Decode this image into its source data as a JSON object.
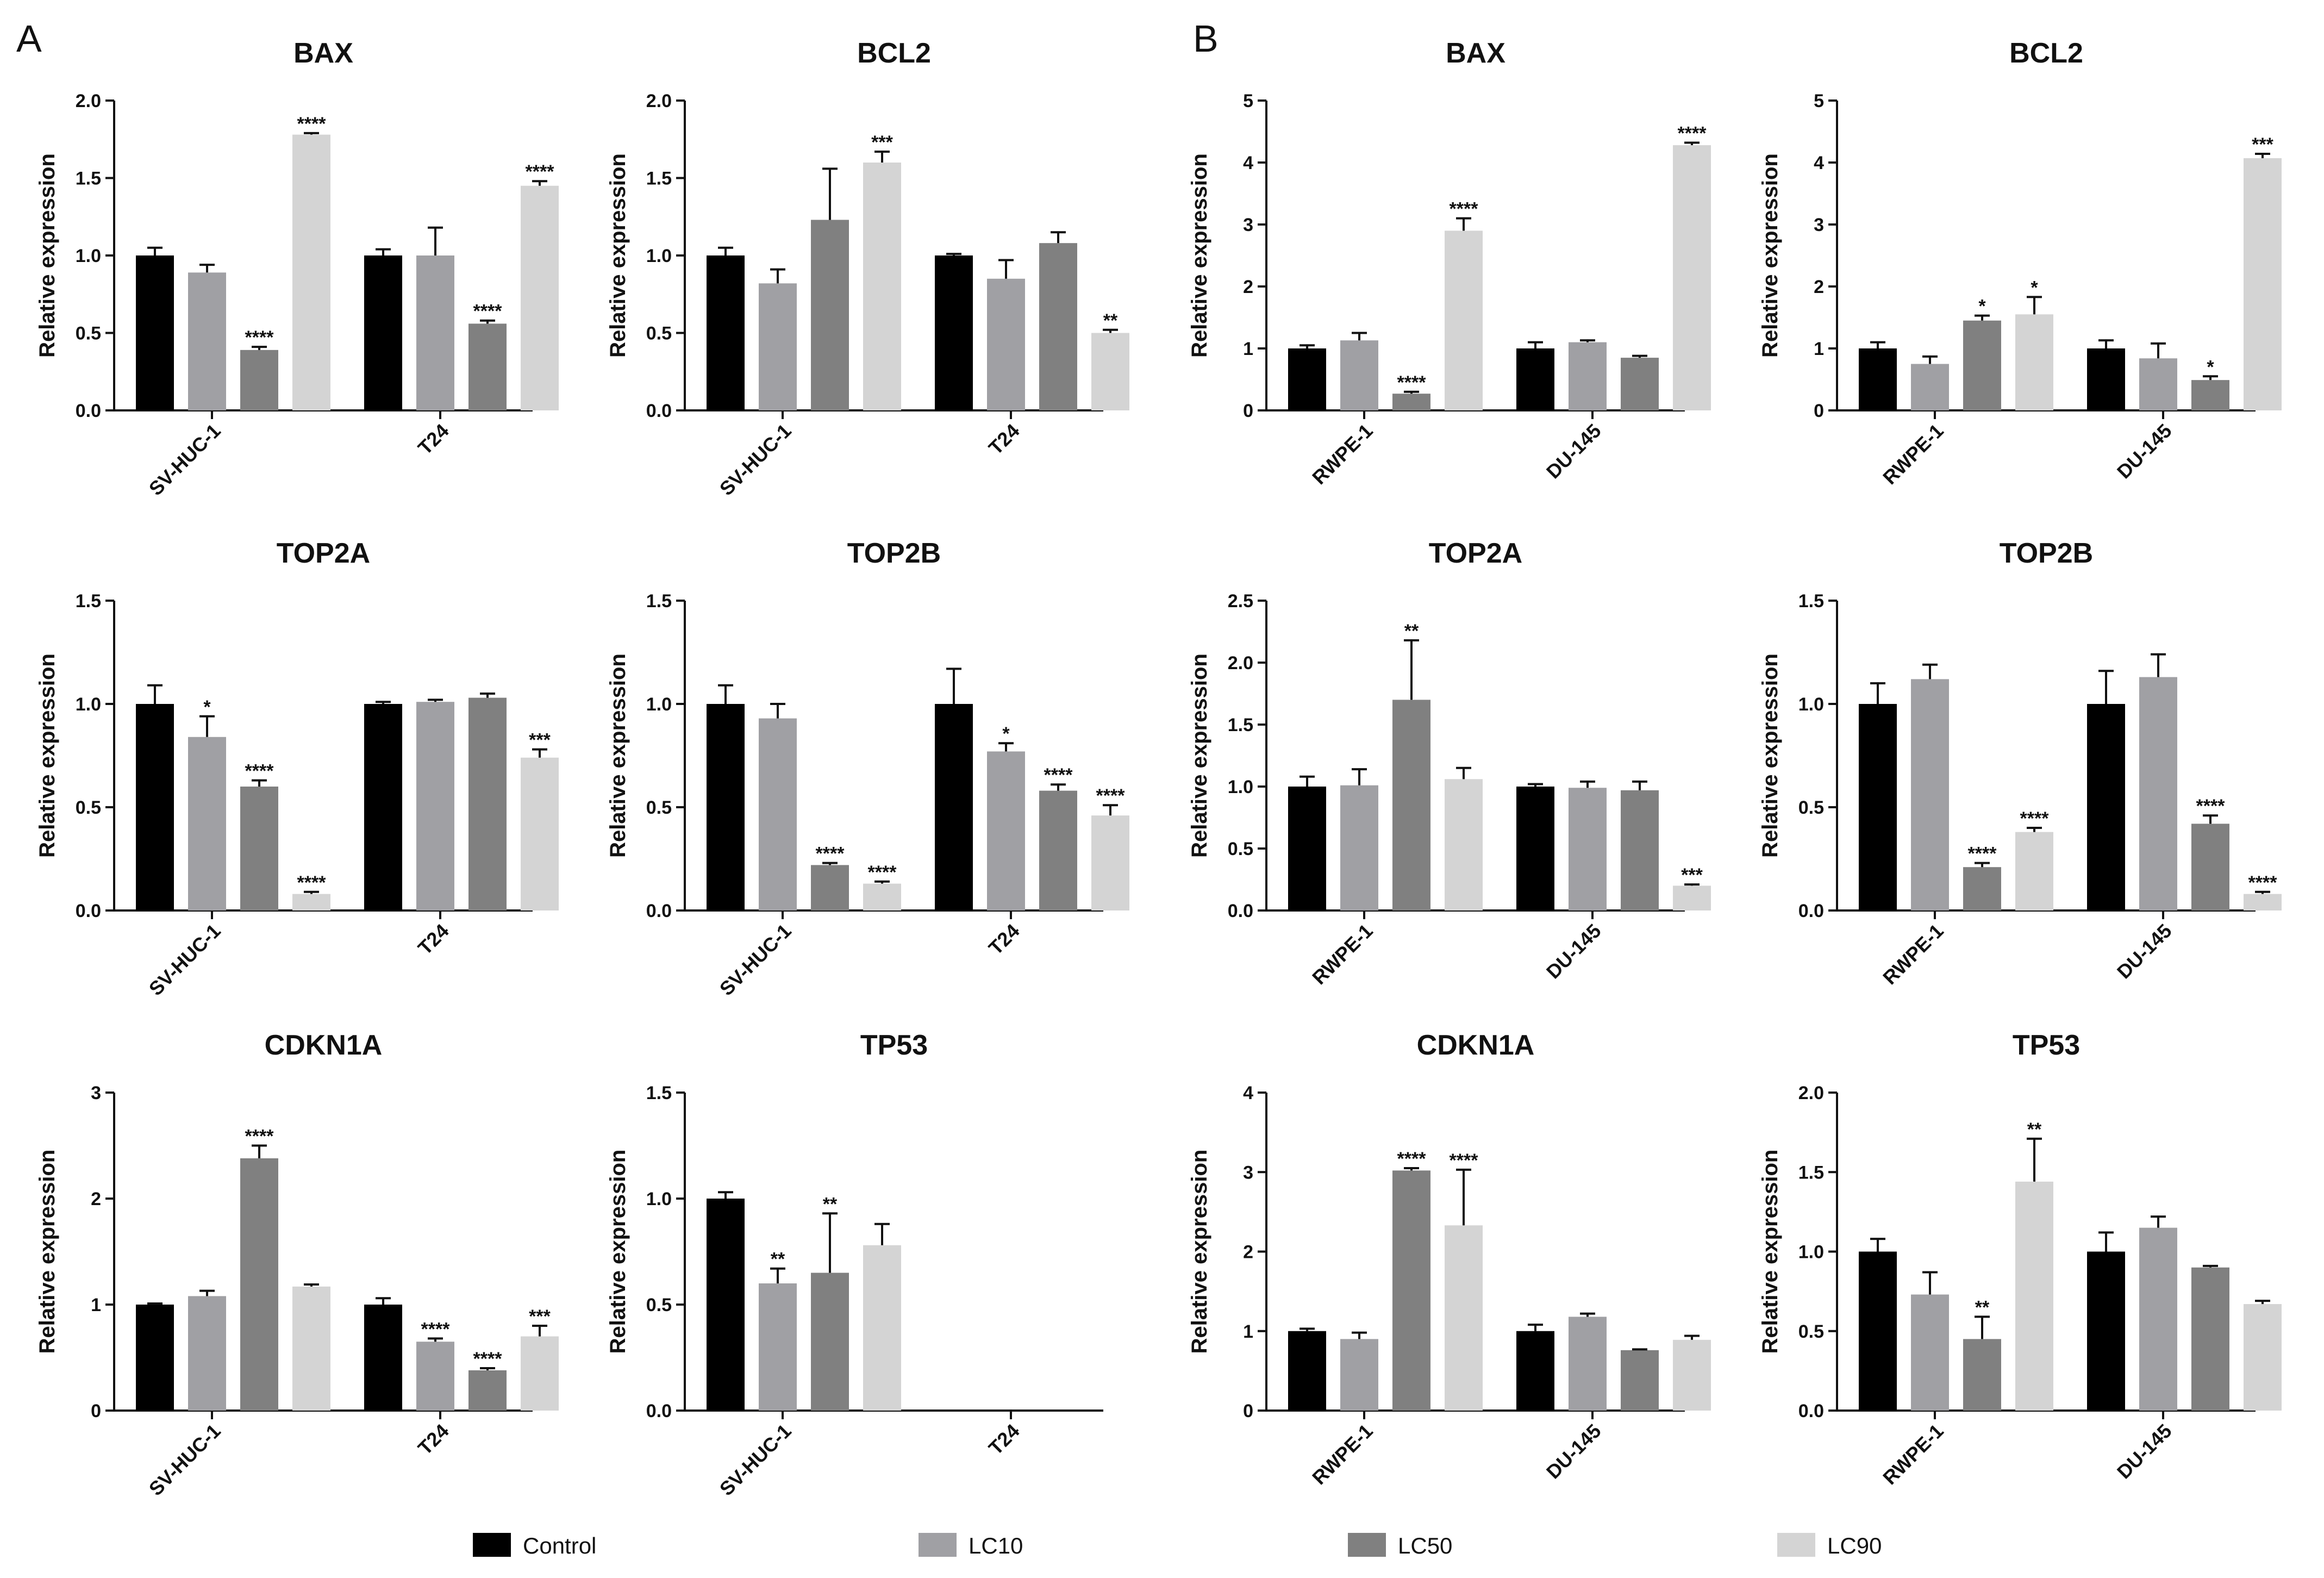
{
  "panel_labels": [
    "A",
    "B"
  ],
  "y_axis_label": "Relative expression",
  "legend": [
    {
      "label": "Control",
      "color": "#000000"
    },
    {
      "label": "LC10",
      "color": "#a0a0a4"
    },
    {
      "label": "LC50",
      "color": "#808080"
    },
    {
      "label": "LC90",
      "color": "#d4d4d4"
    }
  ],
  "chart_data": [
    {
      "type": "bar",
      "panel": "A",
      "title": "BAX",
      "ylabel": "Relative expression",
      "ylim": [
        0,
        2.0
      ],
      "yticks": [
        0.0,
        0.5,
        1.0,
        1.5,
        2.0
      ],
      "ytick_decimals": 1,
      "categories": [
        "SV-HUC-1",
        "T24"
      ],
      "series": [
        {
          "name": "Control",
          "values": [
            1.0,
            1.0
          ],
          "errors": [
            0.05,
            0.04
          ],
          "sig": [
            "",
            ""
          ]
        },
        {
          "name": "LC10",
          "values": [
            0.89,
            1.0
          ],
          "errors": [
            0.05,
            0.18
          ],
          "sig": [
            "",
            ""
          ]
        },
        {
          "name": "LC50",
          "values": [
            0.39,
            0.56
          ],
          "errors": [
            0.02,
            0.02
          ],
          "sig": [
            "****",
            "****"
          ]
        },
        {
          "name": "LC90",
          "values": [
            1.78,
            1.45
          ],
          "errors": [
            0.01,
            0.03
          ],
          "sig": [
            "****",
            "****"
          ]
        }
      ]
    },
    {
      "type": "bar",
      "panel": "A",
      "title": "BCL2",
      "ylabel": "Relative expression",
      "ylim": [
        0,
        2.0
      ],
      "yticks": [
        0.0,
        0.5,
        1.0,
        1.5,
        2.0
      ],
      "ytick_decimals": 1,
      "categories": [
        "SV-HUC-1",
        "T24"
      ],
      "series": [
        {
          "name": "Control",
          "values": [
            1.0,
            1.0
          ],
          "errors": [
            0.05,
            0.01
          ],
          "sig": [
            "",
            ""
          ]
        },
        {
          "name": "LC10",
          "values": [
            0.82,
            0.85
          ],
          "errors": [
            0.09,
            0.12
          ],
          "sig": [
            "",
            ""
          ]
        },
        {
          "name": "LC50",
          "values": [
            1.23,
            1.08
          ],
          "errors": [
            0.33,
            0.07
          ],
          "sig": [
            "",
            ""
          ]
        },
        {
          "name": "LC90",
          "values": [
            1.6,
            0.5
          ],
          "errors": [
            0.07,
            0.02
          ],
          "sig": [
            "***",
            "**"
          ]
        }
      ]
    },
    {
      "type": "bar",
      "panel": "B",
      "title": "BAX",
      "ylabel": "Relative expression",
      "ylim": [
        0,
        5
      ],
      "yticks": [
        0,
        1,
        2,
        3,
        4,
        5
      ],
      "ytick_decimals": 0,
      "categories": [
        "RWPE-1",
        "DU-145"
      ],
      "series": [
        {
          "name": "Control",
          "values": [
            1.0,
            1.0
          ],
          "errors": [
            0.05,
            0.1
          ],
          "sig": [
            "",
            ""
          ]
        },
        {
          "name": "LC10",
          "values": [
            1.13,
            1.1
          ],
          "errors": [
            0.12,
            0.03
          ],
          "sig": [
            "",
            ""
          ]
        },
        {
          "name": "LC50",
          "values": [
            0.27,
            0.85
          ],
          "errors": [
            0.03,
            0.03
          ],
          "sig": [
            "****",
            ""
          ]
        },
        {
          "name": "LC90",
          "values": [
            2.9,
            4.28
          ],
          "errors": [
            0.2,
            0.04
          ],
          "sig": [
            "****",
            "****"
          ]
        }
      ]
    },
    {
      "type": "bar",
      "panel": "B",
      "title": "BCL2",
      "ylabel": "Relative expression",
      "ylim": [
        0,
        5
      ],
      "yticks": [
        0,
        1,
        2,
        3,
        4,
        5
      ],
      "ytick_decimals": 0,
      "categories": [
        "RWPE-1",
        "DU-145"
      ],
      "series": [
        {
          "name": "Control",
          "values": [
            1.0,
            1.0
          ],
          "errors": [
            0.1,
            0.13
          ],
          "sig": [
            "",
            ""
          ]
        },
        {
          "name": "LC10",
          "values": [
            0.75,
            0.84
          ],
          "errors": [
            0.12,
            0.24
          ],
          "sig": [
            "",
            ""
          ]
        },
        {
          "name": "LC50",
          "values": [
            1.45,
            0.49
          ],
          "errors": [
            0.08,
            0.06
          ],
          "sig": [
            "*",
            "*"
          ]
        },
        {
          "name": "LC90",
          "values": [
            1.55,
            4.07
          ],
          "errors": [
            0.28,
            0.07
          ],
          "sig": [
            "*",
            "***"
          ]
        }
      ]
    },
    {
      "type": "bar",
      "panel": "A",
      "title": "TOP2A",
      "ylabel": "Relative expression",
      "ylim": [
        0,
        1.5
      ],
      "yticks": [
        0.0,
        0.5,
        1.0,
        1.5
      ],
      "ytick_decimals": 1,
      "categories": [
        "SV-HUC-1",
        "T24"
      ],
      "series": [
        {
          "name": "Control",
          "values": [
            1.0,
            1.0
          ],
          "errors": [
            0.09,
            0.01
          ],
          "sig": [
            "",
            ""
          ]
        },
        {
          "name": "LC10",
          "values": [
            0.84,
            1.01
          ],
          "errors": [
            0.1,
            0.01
          ],
          "sig": [
            "*",
            ""
          ]
        },
        {
          "name": "LC50",
          "values": [
            0.6,
            1.03
          ],
          "errors": [
            0.03,
            0.02
          ],
          "sig": [
            "****",
            ""
          ]
        },
        {
          "name": "LC90",
          "values": [
            0.08,
            0.74
          ],
          "errors": [
            0.01,
            0.04
          ],
          "sig": [
            "****",
            "***"
          ]
        }
      ]
    },
    {
      "type": "bar",
      "panel": "A",
      "title": "TOP2B",
      "ylabel": "Relative expression",
      "ylim": [
        0,
        1.5
      ],
      "yticks": [
        0.0,
        0.5,
        1.0,
        1.5
      ],
      "ytick_decimals": 1,
      "categories": [
        "SV-HUC-1",
        "T24"
      ],
      "series": [
        {
          "name": "Control",
          "values": [
            1.0,
            1.0
          ],
          "errors": [
            0.09,
            0.17
          ],
          "sig": [
            "",
            ""
          ]
        },
        {
          "name": "LC10",
          "values": [
            0.93,
            0.77
          ],
          "errors": [
            0.07,
            0.04
          ],
          "sig": [
            "",
            "*"
          ]
        },
        {
          "name": "LC50",
          "values": [
            0.22,
            0.58
          ],
          "errors": [
            0.01,
            0.03
          ],
          "sig": [
            "****",
            "****"
          ]
        },
        {
          "name": "LC90",
          "values": [
            0.13,
            0.46
          ],
          "errors": [
            0.01,
            0.05
          ],
          "sig": [
            "****",
            "****"
          ]
        }
      ]
    },
    {
      "type": "bar",
      "panel": "B",
      "title": "TOP2A",
      "ylabel": "Relative expression",
      "ylim": [
        0,
        2.5
      ],
      "yticks": [
        0.0,
        0.5,
        1.0,
        1.5,
        2.0,
        2.5
      ],
      "ytick_decimals": 1,
      "categories": [
        "RWPE-1",
        "DU-145"
      ],
      "series": [
        {
          "name": "Control",
          "values": [
            1.0,
            1.0
          ],
          "errors": [
            0.08,
            0.02
          ],
          "sig": [
            "",
            ""
          ]
        },
        {
          "name": "LC10",
          "values": [
            1.01,
            0.99
          ],
          "errors": [
            0.13,
            0.05
          ],
          "sig": [
            "",
            ""
          ]
        },
        {
          "name": "LC50",
          "values": [
            1.7,
            0.97
          ],
          "errors": [
            0.48,
            0.07
          ],
          "sig": [
            "**",
            ""
          ]
        },
        {
          "name": "LC90",
          "values": [
            1.06,
            0.2
          ],
          "errors": [
            0.09,
            0.01
          ],
          "sig": [
            "",
            "***"
          ]
        }
      ]
    },
    {
      "type": "bar",
      "panel": "B",
      "title": "TOP2B",
      "ylabel": "Relative expression",
      "ylim": [
        0,
        1.5
      ],
      "yticks": [
        0.0,
        0.5,
        1.0,
        1.5
      ],
      "ytick_decimals": 1,
      "categories": [
        "RWPE-1",
        "DU-145"
      ],
      "series": [
        {
          "name": "Control",
          "values": [
            1.0,
            1.0
          ],
          "errors": [
            0.1,
            0.16
          ],
          "sig": [
            "",
            ""
          ]
        },
        {
          "name": "LC10",
          "values": [
            1.12,
            1.13
          ],
          "errors": [
            0.07,
            0.11
          ],
          "sig": [
            "",
            ""
          ]
        },
        {
          "name": "LC50",
          "values": [
            0.21,
            0.42
          ],
          "errors": [
            0.02,
            0.04
          ],
          "sig": [
            "****",
            "****"
          ]
        },
        {
          "name": "LC90",
          "values": [
            0.38,
            0.08
          ],
          "errors": [
            0.02,
            0.01
          ],
          "sig": [
            "****",
            "****"
          ]
        }
      ]
    },
    {
      "type": "bar",
      "panel": "A",
      "title": "CDKN1A",
      "ylabel": "Relative expression",
      "ylim": [
        0,
        3
      ],
      "yticks": [
        0,
        1,
        2,
        3
      ],
      "ytick_decimals": 0,
      "categories": [
        "SV-HUC-1",
        "T24"
      ],
      "series": [
        {
          "name": "Control",
          "values": [
            1.0,
            1.0
          ],
          "errors": [
            0.01,
            0.06
          ],
          "sig": [
            "",
            ""
          ]
        },
        {
          "name": "LC10",
          "values": [
            1.08,
            0.65
          ],
          "errors": [
            0.05,
            0.03
          ],
          "sig": [
            "",
            "****"
          ]
        },
        {
          "name": "LC50",
          "values": [
            2.38,
            0.38
          ],
          "errors": [
            0.12,
            0.02
          ],
          "sig": [
            "****",
            "****"
          ]
        },
        {
          "name": "LC90",
          "values": [
            1.17,
            0.7
          ],
          "errors": [
            0.02,
            0.1
          ],
          "sig": [
            "",
            "***"
          ]
        }
      ]
    },
    {
      "type": "bar",
      "panel": "A",
      "title": "TP53",
      "ylabel": "Relative expression",
      "ylim": [
        0,
        1.5
      ],
      "yticks": [
        0.0,
        0.5,
        1.0,
        1.5
      ],
      "ytick_decimals": 1,
      "categories": [
        "SV-HUC-1",
        "T24"
      ],
      "series": [
        {
          "name": "Control",
          "values": [
            1.0,
            null
          ],
          "errors": [
            0.03,
            0
          ],
          "sig": [
            "",
            ""
          ]
        },
        {
          "name": "LC10",
          "values": [
            0.6,
            null
          ],
          "errors": [
            0.07,
            0
          ],
          "sig": [
            "**",
            ""
          ]
        },
        {
          "name": "LC50",
          "values": [
            0.65,
            null
          ],
          "errors": [
            0.28,
            0
          ],
          "sig": [
            "**",
            ""
          ]
        },
        {
          "name": "LC90",
          "values": [
            0.78,
            null
          ],
          "errors": [
            0.1,
            0
          ],
          "sig": [
            "",
            ""
          ]
        }
      ]
    },
    {
      "type": "bar",
      "panel": "B",
      "title": "CDKN1A",
      "ylabel": "Relative expression",
      "ylim": [
        0,
        4
      ],
      "yticks": [
        0,
        1,
        2,
        3,
        4
      ],
      "ytick_decimals": 0,
      "categories": [
        "RWPE-1",
        "DU-145"
      ],
      "series": [
        {
          "name": "Control",
          "values": [
            1.0,
            1.0
          ],
          "errors": [
            0.03,
            0.08
          ],
          "sig": [
            "",
            ""
          ]
        },
        {
          "name": "LC10",
          "values": [
            0.9,
            1.18
          ],
          "errors": [
            0.08,
            0.04
          ],
          "sig": [
            "",
            ""
          ]
        },
        {
          "name": "LC50",
          "values": [
            3.02,
            0.76
          ],
          "errors": [
            0.03,
            0.01
          ],
          "sig": [
            "****",
            ""
          ]
        },
        {
          "name": "LC90",
          "values": [
            2.33,
            0.89
          ],
          "errors": [
            0.7,
            0.05
          ],
          "sig": [
            "****",
            ""
          ]
        }
      ]
    },
    {
      "type": "bar",
      "panel": "B",
      "title": "TP53",
      "ylabel": "Relative expression",
      "ylim": [
        0,
        2.0
      ],
      "yticks": [
        0.0,
        0.5,
        1.0,
        1.5,
        2.0
      ],
      "ytick_decimals": 1,
      "categories": [
        "RWPE-1",
        "DU-145"
      ],
      "series": [
        {
          "name": "Control",
          "values": [
            1.0,
            1.0
          ],
          "errors": [
            0.08,
            0.12
          ],
          "sig": [
            "",
            ""
          ]
        },
        {
          "name": "LC10",
          "values": [
            0.73,
            1.15
          ],
          "errors": [
            0.14,
            0.07
          ],
          "sig": [
            "",
            ""
          ]
        },
        {
          "name": "LC50",
          "values": [
            0.45,
            0.9
          ],
          "errors": [
            0.14,
            0.01
          ],
          "sig": [
            "**",
            ""
          ]
        },
        {
          "name": "LC90",
          "values": [
            1.44,
            0.67
          ],
          "errors": [
            0.27,
            0.02
          ],
          "sig": [
            "**",
            ""
          ]
        }
      ]
    }
  ]
}
